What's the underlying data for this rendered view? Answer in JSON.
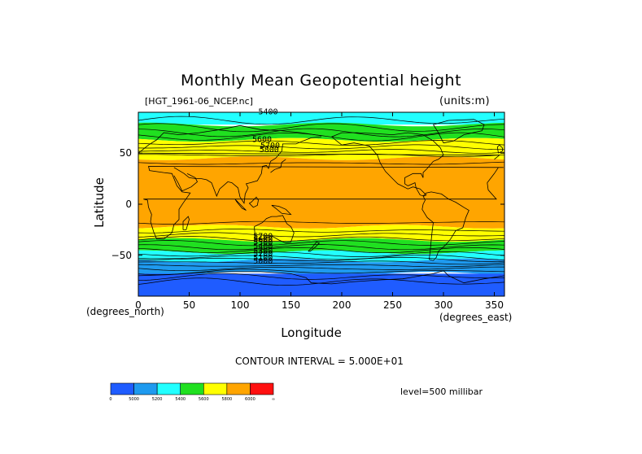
{
  "chart_data": {
    "type": "heatmap",
    "title": "Monthly Mean Geopotential height",
    "file_label": "[HGT_1961-06_NCEP.nc]",
    "units_label": "(units:m)",
    "xlabel": "Longitude",
    "ylabel": "Latitude",
    "x_units": "(degrees_east)",
    "y_units": "(degrees_north)",
    "xlim": [
      0,
      360
    ],
    "ylim": [
      -90,
      90
    ],
    "x_ticks": [
      0,
      50,
      100,
      150,
      200,
      250,
      300,
      350
    ],
    "y_ticks": [
      50,
      0,
      -50
    ],
    "contour_interval": "CONTOUR INTERVAL = 5.000E+01",
    "level": "level=500 millibar",
    "contour_labels": [
      "5400",
      "5600",
      "5700",
      "5800",
      "5700",
      "5600",
      "5500",
      "5400",
      "5300",
      "5200",
      "5100",
      "5000"
    ],
    "colorbar": {
      "colors": [
        "#1f5cff",
        "#1e9aef",
        "#22ffff",
        "#20e020",
        "#ffff00",
        "#ffa500",
        "#ff1010"
      ],
      "labels": [
        "0",
        "5000",
        "5200",
        "5400",
        "5600",
        "5800",
        "6000",
        "∞"
      ]
    },
    "latitude_bands": [
      {
        "lat_range": [
          90,
          78
        ],
        "value_range": "5200-5400",
        "color": "#22ffff"
      },
      {
        "lat_range": [
          78,
          63
        ],
        "value_range": "5400-5600",
        "color": "#20e020"
      },
      {
        "lat_range": [
          63,
          45
        ],
        "value_range": "5600-5800",
        "color": "#ffff00"
      },
      {
        "lat_range": [
          45,
          -22
        ],
        "value_range": "5800-6000",
        "color": "#ffa500"
      },
      {
        "lat_range": [
          -22,
          -35
        ],
        "value_range": "5600-5800",
        "color": "#ffff00"
      },
      {
        "lat_range": [
          -35,
          -47
        ],
        "value_range": "5400-5600",
        "color": "#20e020"
      },
      {
        "lat_range": [
          -47,
          -55
        ],
        "value_range": "5200-5400",
        "color": "#22ffff"
      },
      {
        "lat_range": [
          -55,
          -68
        ],
        "value_range": "5000-5200",
        "color": "#1e9aef"
      },
      {
        "lat_range": [
          -68,
          -90
        ],
        "value_range": "<5000",
        "color": "#1f5cff"
      }
    ]
  }
}
